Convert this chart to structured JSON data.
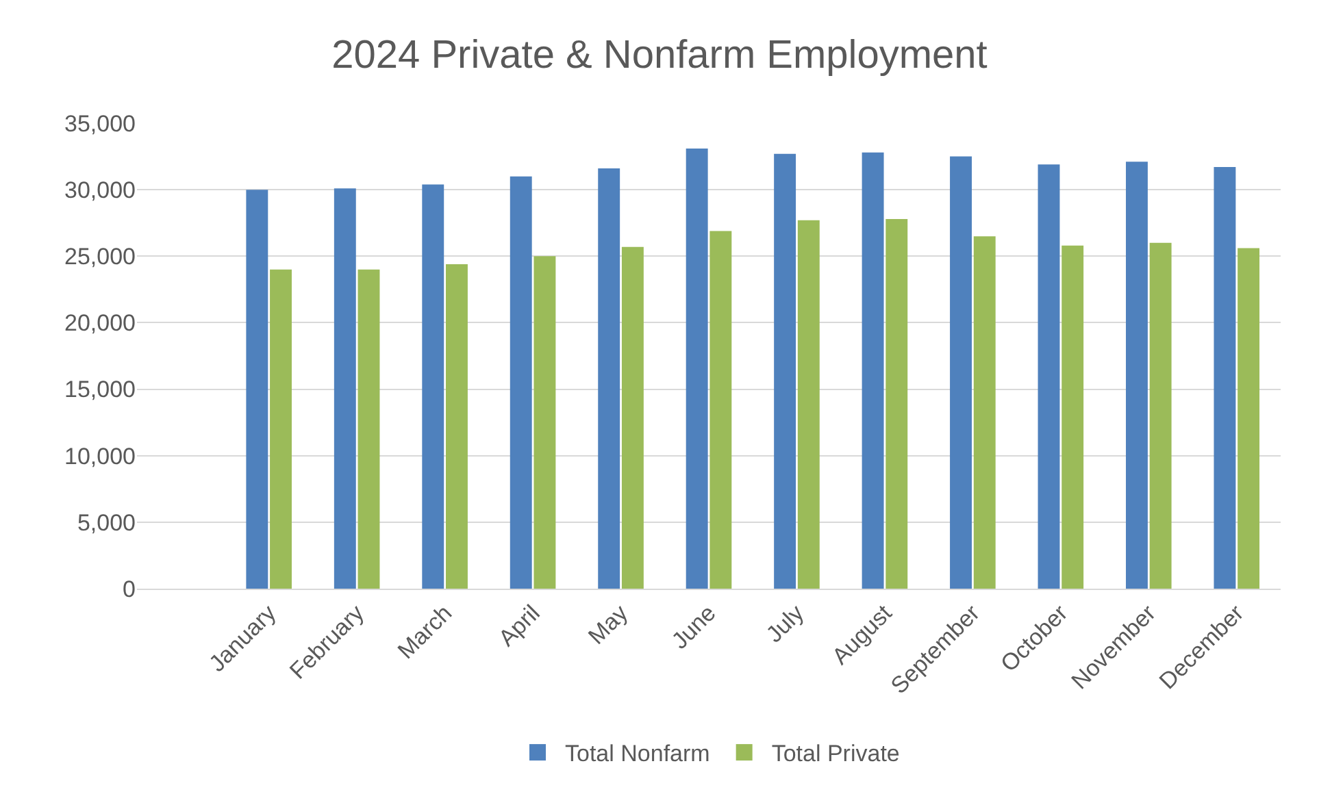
{
  "chart_data": {
    "type": "bar",
    "title": "2024 Private & Nonfarm Employment",
    "categories": [
      null,
      "January",
      "February",
      "March",
      "April",
      "May",
      "June",
      "July",
      "August",
      "September",
      "October",
      "November",
      "December"
    ],
    "series": [
      {
        "name": "Total Nonfarm",
        "color": "#4f81bd",
        "values": [
          null,
          30000,
          30100,
          30400,
          31000,
          31600,
          33100,
          32700,
          32800,
          32500,
          31900,
          32100,
          31700
        ]
      },
      {
        "name": "Total Private",
        "color": "#9bbb59",
        "values": [
          null,
          24000,
          24000,
          24400,
          25000,
          25700,
          26900,
          27700,
          27800,
          26500,
          25800,
          26000,
          25600
        ]
      }
    ],
    "ylim": [
      0,
      35000
    ],
    "yticks": [
      {
        "value": 0,
        "label": "0"
      },
      {
        "value": 5000,
        "label": "5,000"
      },
      {
        "value": 10000,
        "label": "10,000"
      },
      {
        "value": 15000,
        "label": "15,000"
      },
      {
        "value": 20000,
        "label": "20,000"
      },
      {
        "value": 25000,
        "label": "25,000"
      },
      {
        "value": 30000,
        "label": "30,000"
      },
      {
        "value": 35000,
        "label": "35,000"
      }
    ],
    "grid": "y",
    "legend": "bottom"
  }
}
